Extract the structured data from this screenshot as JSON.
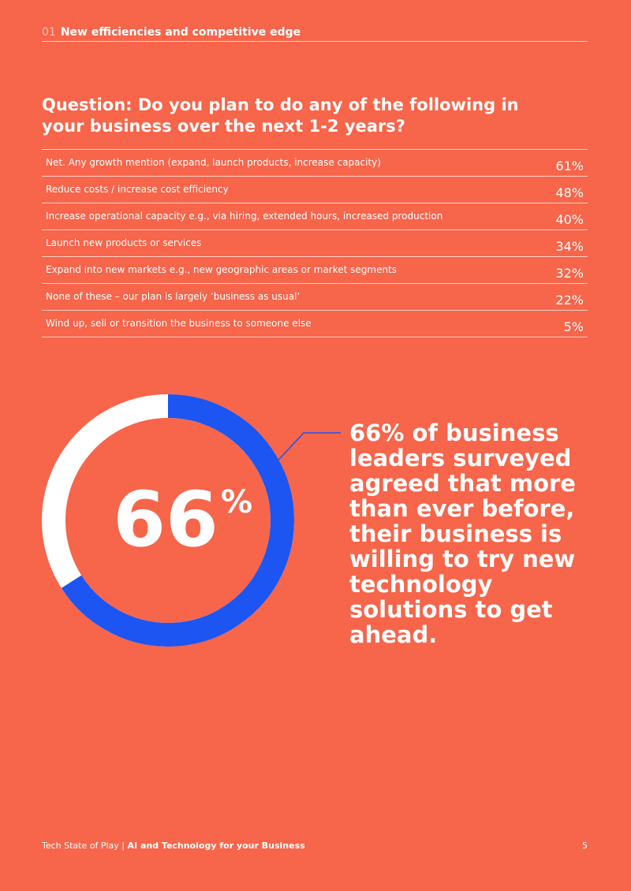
{
  "header": {
    "number": "01",
    "title": "New efficiencies and competitive edge"
  },
  "question": "Question: Do you plan to do any of the following in your business over the next 1-2 years?",
  "table": {
    "rows": [
      [
        "Net. Any growth mention (expand, launch products, increase capacity)",
        "61%"
      ],
      [
        "Reduce costs / increase cost efficiency",
        "48%"
      ],
      [
        "Increase operational capacity e.g., via hiring, extended hours, increased production",
        "40%"
      ],
      [
        "Launch new products or services",
        "34%"
      ],
      [
        "Expand into new markets e.g., new geographic areas or market segments",
        "32%"
      ],
      [
        "None of these – our plan is largely ‘business as usual’",
        "22%"
      ],
      [
        "Wind up, sell or transition the business to someone else",
        "5%"
      ]
    ]
  },
  "donut": {
    "value": 66,
    "symbol": "%",
    "color": "#1c55f2"
  },
  "callout": "66% of business leaders surveyed agreed that more than ever before, their business is willing to try new technology solutions to get ahead.",
  "footer": {
    "publication": "Tech State of Play",
    "separator": "|",
    "subtitle": "AI and Technology for your Business",
    "page": "5"
  }
}
